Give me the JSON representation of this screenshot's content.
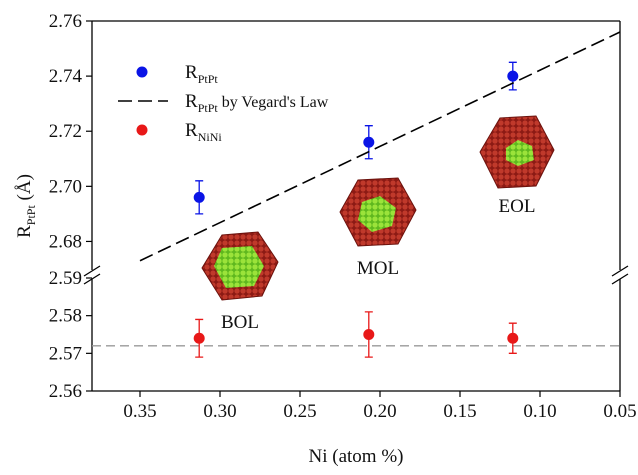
{
  "chart_data": {
    "type": "scatter",
    "x_label": "Ni (atom %)",
    "y_label": {
      "main": "R",
      "sub": "PtPt",
      "unit": " (Å)"
    },
    "xlim": [
      0.38,
      0.05
    ],
    "xticks": [
      0.35,
      {
        "value": 0.3,
        "label": "0.30"
      },
      0.25,
      {
        "value": 0.2,
        "label": "0.20"
      },
      0.15,
      {
        "value": 0.1,
        "label": "0.10"
      },
      0.05
    ],
    "ylim": [
      2.56,
      2.76
    ],
    "y_break": [
      2.59,
      2.67
    ],
    "yticks": [
      2.56,
      2.57,
      2.58,
      2.59,
      2.68,
      {
        "value": 2.7,
        "label": "2.70"
      },
      2.72,
      2.74,
      2.76
    ],
    "series": [
      {
        "name": "R",
        "subscript": "PtPt",
        "color": "#0a14e6",
        "style": "points",
        "x": [
          0.313,
          0.207,
          0.117
        ],
        "values": [
          2.696,
          2.716,
          2.74
        ],
        "errors": [
          0.006,
          0.006,
          0.005
        ]
      },
      {
        "name": "R",
        "subscript": "PtPt",
        "suffix": " by Vegard's Law",
        "color": "#000000",
        "style": "dashed",
        "x": [
          0.35,
          0.05
        ],
        "values": [
          2.673,
          2.756
        ]
      },
      {
        "name": "R",
        "subscript": "NiNi",
        "color": "#e81818",
        "style": "points",
        "x": [
          0.313,
          0.207,
          0.117
        ],
        "values": [
          2.574,
          2.575,
          2.574
        ],
        "errors": [
          0.005,
          0.006,
          0.004
        ]
      }
    ],
    "reference_line": {
      "value": 2.572,
      "color": "#999999"
    },
    "annotations": [
      "BOL",
      "MOL",
      "EOL"
    ]
  }
}
